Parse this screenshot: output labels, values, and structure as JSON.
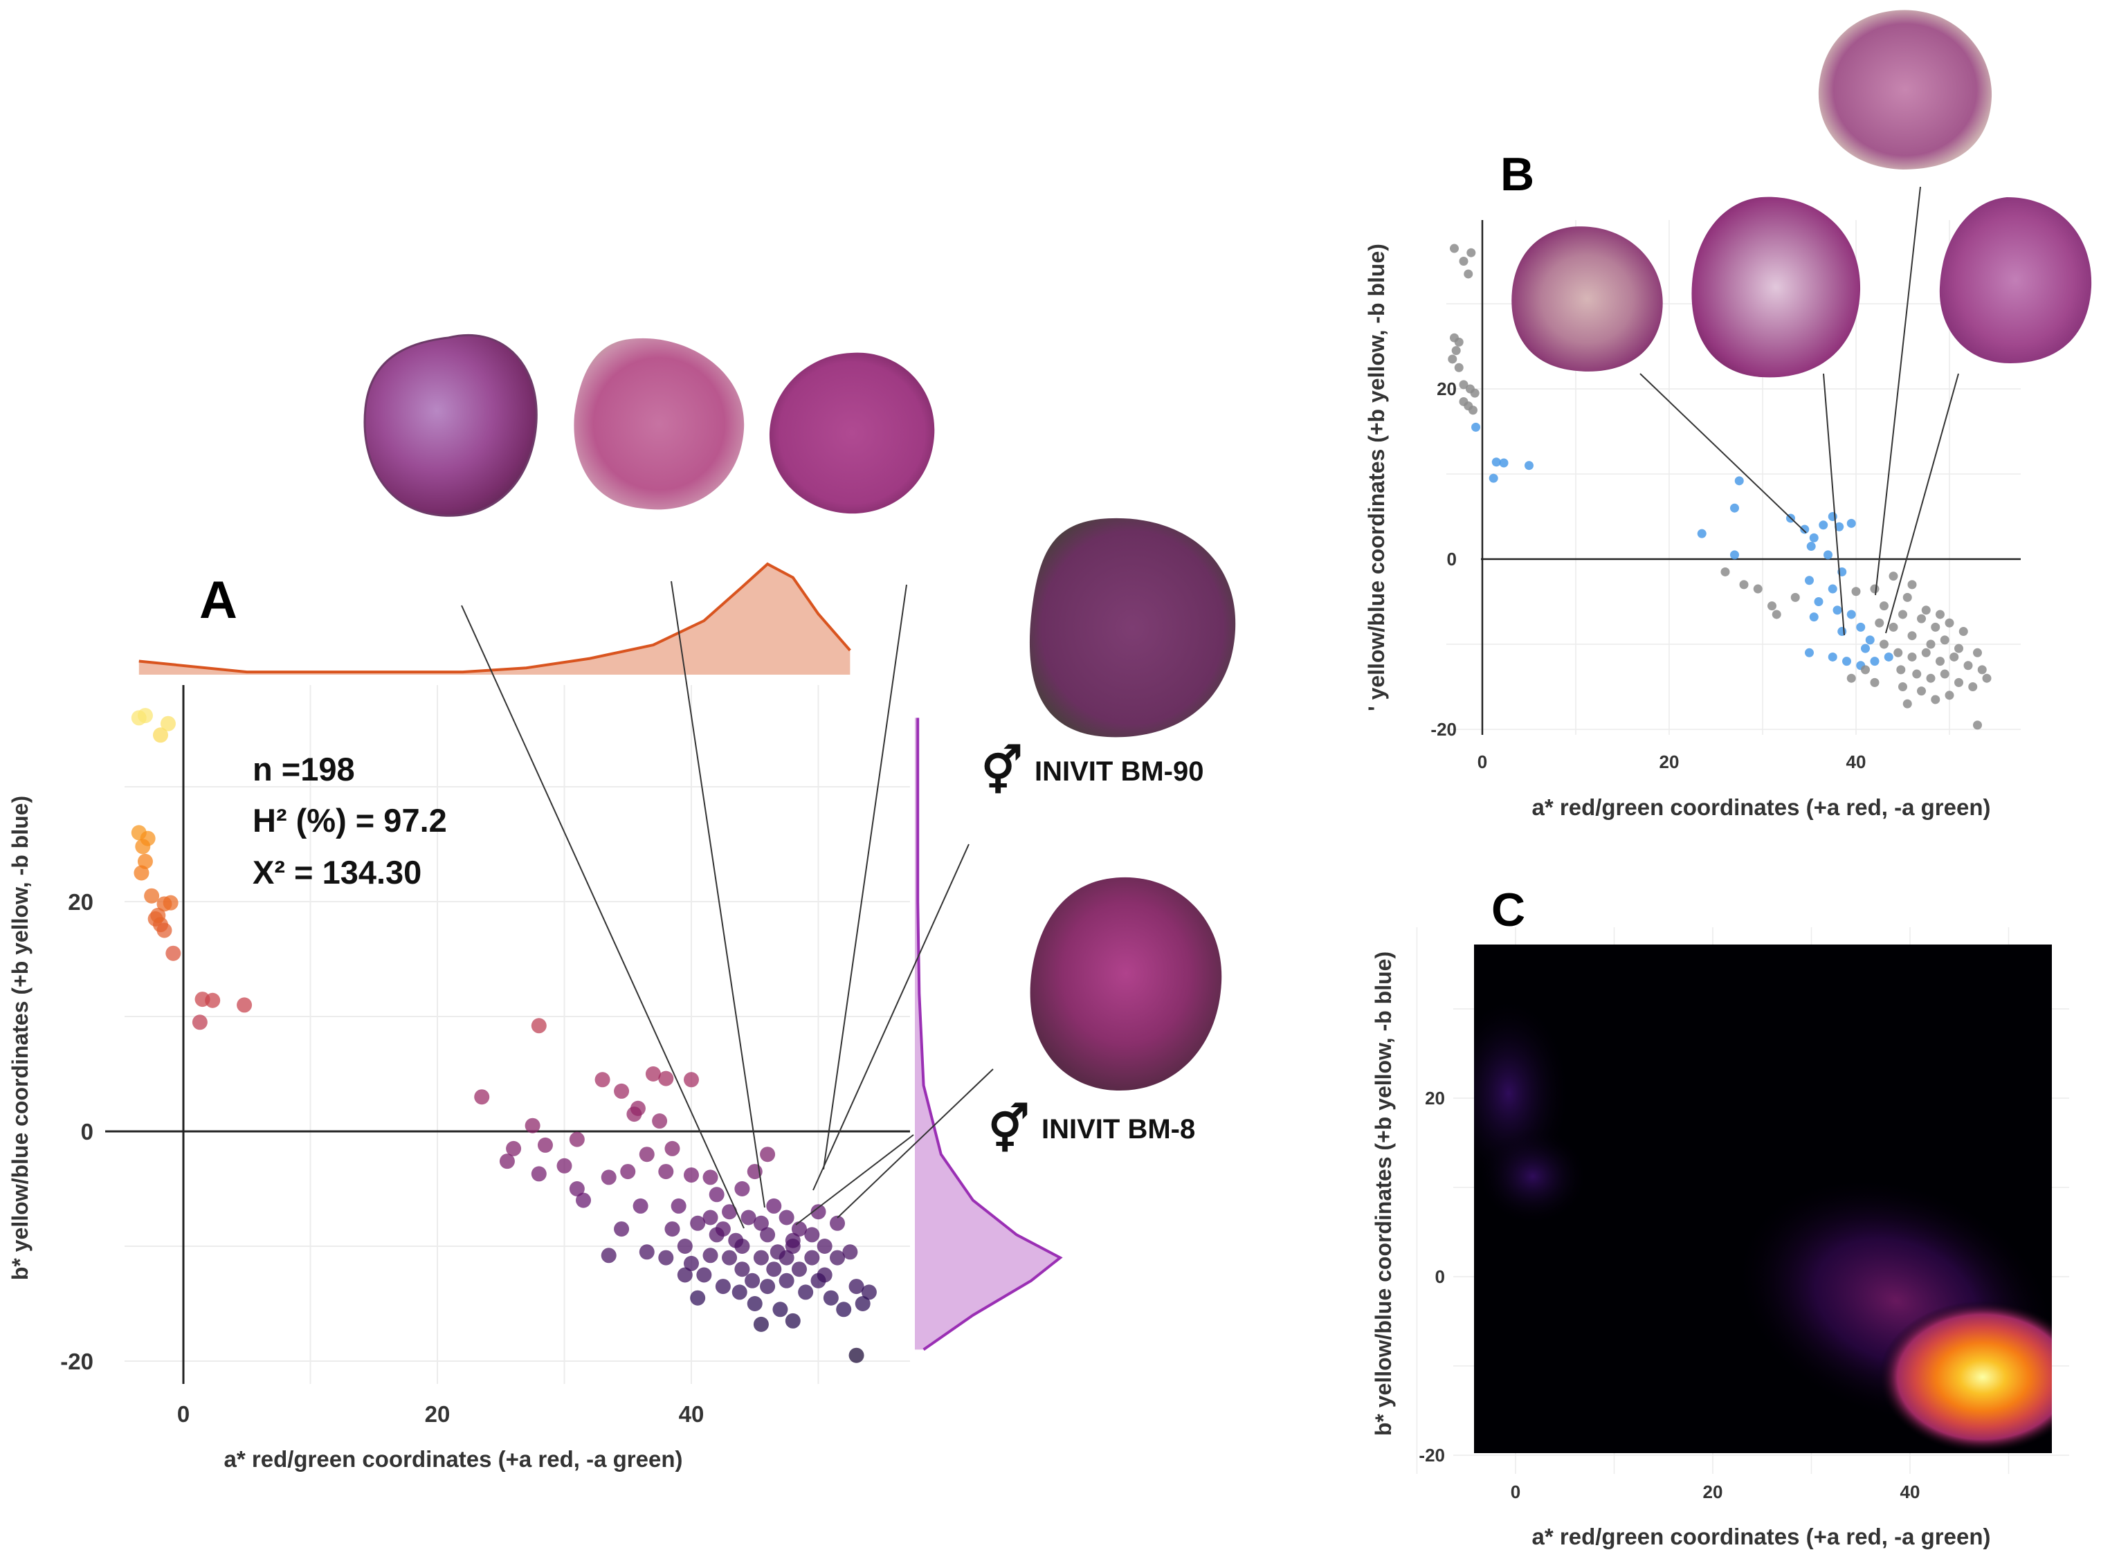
{
  "figure": {
    "panel_labels": {
      "a": "A",
      "b": "B",
      "c": "C"
    },
    "stats": {
      "n": "n =198",
      "h2": "H² (%) = 97.2",
      "x2": "X² = 134.30"
    },
    "parents": {
      "p1": {
        "symbol": "⚥",
        "name": "INIVIT BM-90"
      },
      "p2": {
        "symbol": "⚥",
        "name": "INIVIT BM-8"
      }
    },
    "icons": [
      "hermaphrodite-symbol-icon"
    ],
    "colors": {
      "grid": "#ececec",
      "density_line_x": "#d9541f",
      "density_fill_x": "#efbba6",
      "density_line_y": "#9a2fb4",
      "density_fill_y": "#ddb4e4",
      "group_blue": "#4c9be8",
      "group_grey": "#8c8c8c",
      "heatmap_bg": "#000004"
    }
  },
  "chart_data": [
    {
      "panel": "A",
      "type": "scatter",
      "xlabel": "a* red/green coordinates (+a red, -a green)",
      "ylabel": "b* yellow/blue coordinates (+b yellow, -b blue)",
      "x_ticks": [
        0,
        20,
        40
      ],
      "y_ticks": [
        20,
        0,
        -20
      ],
      "xlim": [
        -6,
        57
      ],
      "ylim": [
        -22,
        39
      ],
      "color_scale": "inferno (by b*)",
      "reference_lines": {
        "x": 0,
        "y": 0
      },
      "marginal_density_x": {
        "x": [
          -3.5,
          5,
          15,
          22,
          27,
          32,
          37,
          41,
          44,
          46,
          48,
          50,
          52.5
        ],
        "density": [
          0.1,
          0.02,
          0.02,
          0.02,
          0.05,
          0.12,
          0.22,
          0.4,
          0.65,
          0.82,
          0.72,
          0.45,
          0.18
        ]
      },
      "marginal_density_y": {
        "y": [
          -19,
          -16,
          -13,
          -11,
          -9,
          -6,
          -2,
          4,
          12,
          20,
          28,
          36
        ],
        "density": [
          0.06,
          0.4,
          0.8,
          1.0,
          0.7,
          0.4,
          0.18,
          0.06,
          0.03,
          0.02,
          0.02,
          0.02
        ]
      },
      "points": [
        {
          "x": -3.5,
          "y": 36
        },
        {
          "x": -3.0,
          "y": 36.2
        },
        {
          "x": -1.8,
          "y": 34.5
        },
        {
          "x": -1.2,
          "y": 35.5
        },
        {
          "x": -3.5,
          "y": 26
        },
        {
          "x": -2.8,
          "y": 25.5
        },
        {
          "x": -3.2,
          "y": 24.8
        },
        {
          "x": -3.0,
          "y": 23.5
        },
        {
          "x": -3.3,
          "y": 22.5
        },
        {
          "x": -2.5,
          "y": 20.5
        },
        {
          "x": -1.5,
          "y": 19.8
        },
        {
          "x": -1.0,
          "y": 19.9
        },
        {
          "x": -2.2,
          "y": 18.5
        },
        {
          "x": -1.8,
          "y": 18.0
        },
        {
          "x": -1.5,
          "y": 17.5
        },
        {
          "x": -2.0,
          "y": 18.8
        },
        {
          "x": -0.8,
          "y": 15.5
        },
        {
          "x": 1.5,
          "y": 11.5
        },
        {
          "x": 2.3,
          "y": 11.4
        },
        {
          "x": 4.8,
          "y": 11.0
        },
        {
          "x": 1.3,
          "y": 9.5
        },
        {
          "x": 23.5,
          "y": 3.0
        },
        {
          "x": 28,
          "y": 9.2
        },
        {
          "x": 27.5,
          "y": 0.5
        },
        {
          "x": 26,
          "y": -1.5
        },
        {
          "x": 25.5,
          "y": -2.6
        },
        {
          "x": 28,
          "y": -3.7
        },
        {
          "x": 28.5,
          "y": -1.2
        },
        {
          "x": 30,
          "y": -3.0
        },
        {
          "x": 31,
          "y": -0.7
        },
        {
          "x": 33,
          "y": 4.5
        },
        {
          "x": 34.5,
          "y": 3.5
        },
        {
          "x": 35.8,
          "y": 2.0
        },
        {
          "x": 35.5,
          "y": 1.5
        },
        {
          "x": 37,
          "y": 5.0
        },
        {
          "x": 38,
          "y": 4.6
        },
        {
          "x": 40,
          "y": 4.5
        },
        {
          "x": 37.5,
          "y": 0.9
        },
        {
          "x": 38.5,
          "y": -1.5
        },
        {
          "x": 36.5,
          "y": -2.0
        },
        {
          "x": 35,
          "y": -3.5
        },
        {
          "x": 33.5,
          "y": -4.0
        },
        {
          "x": 31,
          "y": -5.0
        },
        {
          "x": 31.5,
          "y": -6.0
        },
        {
          "x": 36,
          "y": -6.5
        },
        {
          "x": 38,
          "y": -3.5
        },
        {
          "x": 40,
          "y": -3.8
        },
        {
          "x": 39,
          "y": -6.5
        },
        {
          "x": 41.5,
          "y": -4.0
        },
        {
          "x": 42,
          "y": -5.5
        },
        {
          "x": 44,
          "y": -5.0
        },
        {
          "x": 45,
          "y": -3.5
        },
        {
          "x": 46,
          "y": -2.0
        },
        {
          "x": 34.5,
          "y": -8.5
        },
        {
          "x": 38.5,
          "y": -8.5
        },
        {
          "x": 40.5,
          "y": -8.0
        },
        {
          "x": 41.5,
          "y": -7.5
        },
        {
          "x": 43,
          "y": -7.0
        },
        {
          "x": 44.5,
          "y": -7.5
        },
        {
          "x": 45.5,
          "y": -8.0
        },
        {
          "x": 46.5,
          "y": -6.5
        },
        {
          "x": 47.5,
          "y": -7.5
        },
        {
          "x": 48.5,
          "y": -8.5
        },
        {
          "x": 50,
          "y": -7.0
        },
        {
          "x": 51.5,
          "y": -8.0
        },
        {
          "x": 49.5,
          "y": -9.0
        },
        {
          "x": 43.5,
          "y": -9.5
        },
        {
          "x": 46,
          "y": -9.0
        },
        {
          "x": 48,
          "y": -9.5
        },
        {
          "x": 42,
          "y": -9.0
        },
        {
          "x": 39.5,
          "y": -10.0
        },
        {
          "x": 36.5,
          "y": -10.5
        },
        {
          "x": 33.5,
          "y": -10.8
        },
        {
          "x": 38,
          "y": -11.0
        },
        {
          "x": 40,
          "y": -11.5
        },
        {
          "x": 41.5,
          "y": -10.8
        },
        {
          "x": 43,
          "y": -11.0
        },
        {
          "x": 44,
          "y": -12.0
        },
        {
          "x": 45.5,
          "y": -11.0
        },
        {
          "x": 46.5,
          "y": -12.0
        },
        {
          "x": 47.5,
          "y": -11.0
        },
        {
          "x": 48.5,
          "y": -12.0
        },
        {
          "x": 49.5,
          "y": -11.0
        },
        {
          "x": 50.5,
          "y": -12.5
        },
        {
          "x": 51.5,
          "y": -11.0
        },
        {
          "x": 52.5,
          "y": -10.5
        },
        {
          "x": 44.8,
          "y": -13.0
        },
        {
          "x": 46,
          "y": -13.5
        },
        {
          "x": 47.5,
          "y": -13.0
        },
        {
          "x": 49,
          "y": -14.0
        },
        {
          "x": 50,
          "y": -13.0
        },
        {
          "x": 51,
          "y": -14.5
        },
        {
          "x": 42.5,
          "y": -13.5
        },
        {
          "x": 41,
          "y": -12.5
        },
        {
          "x": 43.8,
          "y": -14.0
        },
        {
          "x": 45,
          "y": -15.0
        },
        {
          "x": 47,
          "y": -15.5
        },
        {
          "x": 48,
          "y": -16.5
        },
        {
          "x": 52,
          "y": -15.5
        },
        {
          "x": 53,
          "y": -13.5
        },
        {
          "x": 54,
          "y": -14.0
        },
        {
          "x": 53.5,
          "y": -15.0
        },
        {
          "x": 40.5,
          "y": -14.5
        },
        {
          "x": 39.5,
          "y": -12.5
        },
        {
          "x": 45.5,
          "y": -16.8
        },
        {
          "x": 53,
          "y": -19.5
        },
        {
          "x": 42.5,
          "y": -8.5
        },
        {
          "x": 44,
          "y": -10.0
        },
        {
          "x": 46.8,
          "y": -10.5
        },
        {
          "x": 48,
          "y": -10.0
        },
        {
          "x": 50.5,
          "y": -10.0
        }
      ]
    },
    {
      "panel": "B",
      "type": "scatter",
      "xlabel": "a* red/green coordinates (+a red, -a green)",
      "ylabel": "' yellow/blue coordinates (+b yellow, -b blue)",
      "x_ticks": [
        0,
        20,
        40
      ],
      "y_ticks": [
        20,
        0,
        -20
      ],
      "xlim": [
        -5,
        58
      ],
      "ylim": [
        -22,
        40
      ],
      "reference_lines": {
        "x": 0,
        "y": 0
      },
      "series": [
        {
          "name": "blue group",
          "color": "#4c9be8",
          "points": [
            {
              "x": -0.7,
              "y": 15.5
            },
            {
              "x": 1.5,
              "y": 11.4
            },
            {
              "x": 2.3,
              "y": 11.3
            },
            {
              "x": 5,
              "y": 11.0
            },
            {
              "x": 1.2,
              "y": 9.5
            },
            {
              "x": 27.5,
              "y": 9.2
            },
            {
              "x": 27,
              "y": 6.0
            },
            {
              "x": 23.5,
              "y": 3.0
            },
            {
              "x": 27,
              "y": 0.5
            },
            {
              "x": 33,
              "y": 4.8
            },
            {
              "x": 34.5,
              "y": 3.5
            },
            {
              "x": 35.5,
              "y": 2.5
            },
            {
              "x": 36.5,
              "y": 4.0
            },
            {
              "x": 37.5,
              "y": 5.0
            },
            {
              "x": 38.2,
              "y": 3.8
            },
            {
              "x": 39.5,
              "y": 4.2
            },
            {
              "x": 35.2,
              "y": 1.5
            },
            {
              "x": 37,
              "y": 0.5
            },
            {
              "x": 38.5,
              "y": -1.5
            },
            {
              "x": 35,
              "y": -2.5
            },
            {
              "x": 37.5,
              "y": -3.5
            },
            {
              "x": 36,
              "y": -5.0
            },
            {
              "x": 38,
              "y": -6.0
            },
            {
              "x": 39.5,
              "y": -6.5
            },
            {
              "x": 35.5,
              "y": -6.8
            },
            {
              "x": 38.5,
              "y": -8.5
            },
            {
              "x": 40.5,
              "y": -8.0
            },
            {
              "x": 41.5,
              "y": -9.5
            },
            {
              "x": 35,
              "y": -11.0
            },
            {
              "x": 37.5,
              "y": -11.5
            },
            {
              "x": 39,
              "y": -12.0
            },
            {
              "x": 40.5,
              "y": -12.5
            },
            {
              "x": 42,
              "y": -12.0
            },
            {
              "x": 43.5,
              "y": -11.5
            },
            {
              "x": 41,
              "y": -10.5
            }
          ]
        },
        {
          "name": "grey group",
          "color": "#8c8c8c",
          "points": [
            {
              "x": -3.0,
              "y": 36.5
            },
            {
              "x": -1.2,
              "y": 36.0
            },
            {
              "x": -2.0,
              "y": 35.0
            },
            {
              "x": -1.5,
              "y": 33.5
            },
            {
              "x": -3.0,
              "y": 26.0
            },
            {
              "x": -2.5,
              "y": 25.5
            },
            {
              "x": -2.8,
              "y": 24.5
            },
            {
              "x": -3.2,
              "y": 23.5
            },
            {
              "x": -2.5,
              "y": 22.5
            },
            {
              "x": -2.0,
              "y": 20.5
            },
            {
              "x": -1.3,
              "y": 20.0
            },
            {
              "x": -0.8,
              "y": 19.5
            },
            {
              "x": -2.0,
              "y": 18.5
            },
            {
              "x": -1.5,
              "y": 18.0
            },
            {
              "x": -1.0,
              "y": 17.5
            },
            {
              "x": 26,
              "y": -1.5
            },
            {
              "x": 28,
              "y": -3.0
            },
            {
              "x": 29.5,
              "y": -3.5
            },
            {
              "x": 31,
              "y": -5.5
            },
            {
              "x": 31.5,
              "y": -6.5
            },
            {
              "x": 33.5,
              "y": -4.5
            },
            {
              "x": 40,
              "y": -3.8
            },
            {
              "x": 42,
              "y": -3.5
            },
            {
              "x": 44,
              "y": -2.0
            },
            {
              "x": 46,
              "y": -3.0
            },
            {
              "x": 43,
              "y": -5.5
            },
            {
              "x": 45,
              "y": -6.5
            },
            {
              "x": 47,
              "y": -7.0
            },
            {
              "x": 48.5,
              "y": -8.0
            },
            {
              "x": 50,
              "y": -7.5
            },
            {
              "x": 51.5,
              "y": -8.5
            },
            {
              "x": 44,
              "y": -8.0
            },
            {
              "x": 46,
              "y": -9.0
            },
            {
              "x": 48,
              "y": -10.0
            },
            {
              "x": 49.5,
              "y": -9.5
            },
            {
              "x": 43,
              "y": -10.0
            },
            {
              "x": 44.5,
              "y": -11.0
            },
            {
              "x": 46,
              "y": -11.5
            },
            {
              "x": 47.5,
              "y": -11.0
            },
            {
              "x": 49,
              "y": -12.0
            },
            {
              "x": 50.5,
              "y": -11.5
            },
            {
              "x": 52,
              "y": -12.5
            },
            {
              "x": 53.5,
              "y": -13.0
            },
            {
              "x": 44.8,
              "y": -13.0
            },
            {
              "x": 46.5,
              "y": -13.5
            },
            {
              "x": 48,
              "y": -14.0
            },
            {
              "x": 49.5,
              "y": -13.5
            },
            {
              "x": 51,
              "y": -14.5
            },
            {
              "x": 52.5,
              "y": -15.0
            },
            {
              "x": 54,
              "y": -14.0
            },
            {
              "x": 45,
              "y": -15.0
            },
            {
              "x": 47,
              "y": -15.5
            },
            {
              "x": 48.5,
              "y": -16.5
            },
            {
              "x": 50,
              "y": -16.0
            },
            {
              "x": 53,
              "y": -19.5
            },
            {
              "x": 45.5,
              "y": -17.0
            },
            {
              "x": 42,
              "y": -14.5
            },
            {
              "x": 41,
              "y": -13.0
            },
            {
              "x": 39.5,
              "y": -14.0
            },
            {
              "x": 51,
              "y": -10.5
            },
            {
              "x": 47.5,
              "y": -6.0
            },
            {
              "x": 49,
              "y": -6.5
            },
            {
              "x": 45.5,
              "y": -4.5
            },
            {
              "x": 42.5,
              "y": -7.5
            },
            {
              "x": 53,
              "y": -11.0
            }
          ]
        }
      ]
    },
    {
      "panel": "C",
      "type": "heatmap",
      "xlabel": "a* red/green coordinates (+a red, -a green)",
      "ylabel": "b* yellow/blue coordinates (+b yellow, -b blue)",
      "x_ticks": [
        0,
        20,
        40
      ],
      "y_ticks": [
        20,
        0,
        -20
      ],
      "xlim": [
        -4,
        55
      ],
      "ylim": [
        -20,
        37
      ],
      "color_scale": "inferno (2D kernel density)",
      "density_peaks": [
        {
          "x": 46.5,
          "y": -11,
          "relative_density": 1.0
        },
        {
          "x": 37,
          "y": -6,
          "relative_density": 0.3
        },
        {
          "x": -1,
          "y": 20,
          "relative_density": 0.12
        },
        {
          "x": 1,
          "y": 10,
          "relative_density": 0.08
        }
      ]
    }
  ]
}
